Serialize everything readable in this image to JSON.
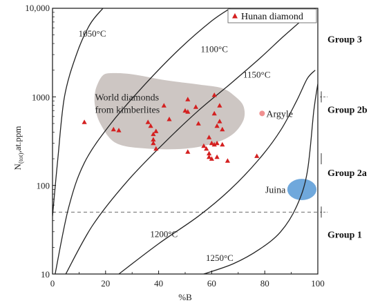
{
  "chart_data": {
    "type": "scatter",
    "xlabel": "%B",
    "ylabel_main": "N",
    "ylabel_sub": "(tot)",
    "ylabel_tail": ",at.ppm",
    "xlim": [
      0,
      100
    ],
    "ylim": [
      10,
      10000
    ],
    "yscale": "log",
    "x_ticks": [
      0,
      20,
      40,
      60,
      80,
      100
    ],
    "x_tick_labels": [
      "0",
      "20",
      "40",
      "60",
      "80",
      "100"
    ],
    "y_ticks": [
      10,
      100,
      1000,
      10000
    ],
    "y_tick_labels": [
      "10",
      "100",
      "1000",
      "10,000"
    ],
    "legend": {
      "label": "Hunan diamond",
      "position": "top-right",
      "marker": "triangle",
      "color": "#d42020"
    },
    "series": [
      {
        "name": "Hunan diamond",
        "marker": "triangle",
        "color": "#d42020",
        "points": [
          [
            12,
            520
          ],
          [
            23,
            430
          ],
          [
            25,
            420
          ],
          [
            36,
            520
          ],
          [
            37,
            470
          ],
          [
            38,
            380
          ],
          [
            39,
            410
          ],
          [
            38,
            330
          ],
          [
            38,
            300
          ],
          [
            39,
            260
          ],
          [
            42,
            800
          ],
          [
            44,
            560
          ],
          [
            50,
            700
          ],
          [
            51,
            940
          ],
          [
            54,
            770
          ],
          [
            55,
            500
          ],
          [
            51,
            680
          ],
          [
            51,
            240
          ],
          [
            57,
            280
          ],
          [
            58,
            260
          ],
          [
            59,
            230
          ],
          [
            59,
            210
          ],
          [
            60,
            200
          ],
          [
            61,
            1050
          ],
          [
            61,
            650
          ],
          [
            62,
            470
          ],
          [
            62,
            300
          ],
          [
            62,
            210
          ],
          [
            63,
            800
          ],
          [
            63,
            530
          ],
          [
            64,
            430
          ],
          [
            64,
            290
          ],
          [
            66,
            190
          ],
          [
            77,
            215
          ],
          [
            59,
            350
          ],
          [
            60,
            300
          ],
          [
            61,
            290
          ]
        ]
      }
    ],
    "isotherms": [
      {
        "label": "1050°C",
        "points": [
          [
            0,
            45
          ],
          [
            2,
            200
          ],
          [
            4.5,
            1000
          ],
          [
            9,
            3000
          ],
          [
            14,
            6500
          ],
          [
            19,
            10000
          ]
        ]
      },
      {
        "label": "1100°C",
        "points": [
          [
            1,
            10
          ],
          [
            6,
            55
          ],
          [
            12,
            180
          ],
          [
            22,
            500
          ],
          [
            35,
            1400
          ],
          [
            48,
            3500
          ],
          [
            60,
            7200
          ],
          [
            67,
            10000
          ]
        ]
      },
      {
        "label": "1150°C",
        "points": [
          [
            5,
            10
          ],
          [
            15,
            35
          ],
          [
            28,
            110
          ],
          [
            42,
            300
          ],
          [
            55,
            700
          ],
          [
            67,
            1400
          ],
          [
            78,
            2700
          ],
          [
            87,
            4800
          ],
          [
            95,
            7800
          ],
          [
            99,
            10000
          ]
        ]
      },
      {
        "label": "1200°C",
        "points": [
          [
            25,
            10
          ],
          [
            40,
            22
          ],
          [
            55,
            45
          ],
          [
            67,
            90
          ],
          [
            78,
            200
          ],
          [
            86,
            420
          ],
          [
            92,
            900
          ],
          [
            96,
            1600
          ],
          [
            99,
            2000
          ]
        ]
      },
      {
        "label": "1250°C",
        "points": [
          [
            57,
            10
          ],
          [
            68,
            13
          ],
          [
            78,
            19
          ],
          [
            86,
            30
          ],
          [
            92,
            58
          ],
          [
            96,
            140
          ],
          [
            98.5,
            700
          ],
          [
            100,
            1400
          ]
        ]
      }
    ],
    "isotherm_label_positions": [
      [
        15,
        4800
      ],
      [
        61,
        3200
      ],
      [
        77,
        1650
      ],
      [
        42,
        26
      ],
      [
        63,
        14
      ]
    ],
    "reference_line": {
      "y": 50,
      "style": "dashed"
    },
    "regions": [
      {
        "label_lines": [
          "World diamonds",
          "from kimberlites"
        ],
        "color": "#cdc6c3",
        "outline": [
          [
            16,
            1100
          ],
          [
            17,
            1400
          ],
          [
            19,
            1750
          ],
          [
            22,
            1850
          ],
          [
            30,
            1800
          ],
          [
            42,
            1550
          ],
          [
            55,
            1380
          ],
          [
            64,
            1250
          ],
          [
            69,
            1000
          ],
          [
            72,
            780
          ],
          [
            72,
            550
          ],
          [
            68,
            380
          ],
          [
            61,
            300
          ],
          [
            50,
            260
          ],
          [
            36,
            260
          ],
          [
            24,
            300
          ],
          [
            18,
            500
          ],
          [
            16,
            800
          ]
        ],
        "label_anchor": [
          16,
          820
        ]
      },
      {
        "label": "Argyle",
        "color": "#f09090",
        "point": [
          79,
          650
        ]
      },
      {
        "label": "Juina",
        "color": "#6fa8dc",
        "center": [
          94,
          90
        ],
        "rx": 5.5,
        "ry_log": 0.12
      }
    ],
    "groups": [
      {
        "label": "Group 3",
        "y": 4500
      },
      {
        "label": "Group 2b",
        "y": 720
      },
      {
        "label": "Group 2a",
        "y": 140
      },
      {
        "label": "Group 1",
        "y": 28
      }
    ],
    "group_boundaries": [
      1000,
      50
    ]
  }
}
